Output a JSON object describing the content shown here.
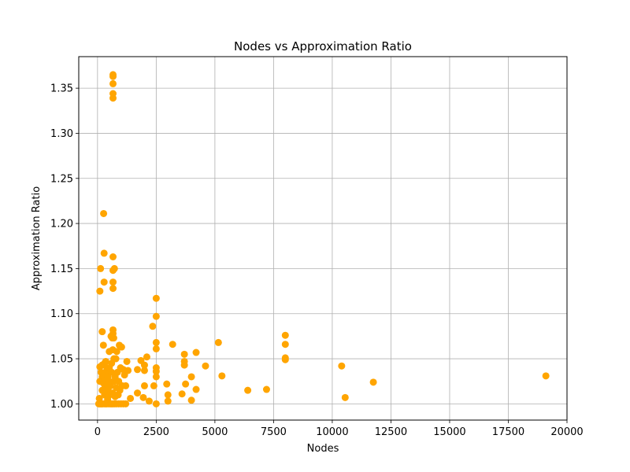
{
  "chart_data": {
    "type": "scatter",
    "title": "Nodes vs Approximation Ratio",
    "xlabel": "Nodes",
    "ylabel": "Approximation Ratio",
    "xlim": [
      -800,
      20000
    ],
    "ylim": [
      0.982,
      1.385
    ],
    "x_ticks": [
      0,
      2500,
      5000,
      7500,
      10000,
      12500,
      15000,
      17500,
      20000
    ],
    "x_tick_labels": [
      "0",
      "2500",
      "5000",
      "7500",
      "10000",
      "12500",
      "15000",
      "17500",
      "20000"
    ],
    "y_ticks": [
      1.0,
      1.05,
      1.1,
      1.15,
      1.2,
      1.25,
      1.3,
      1.35
    ],
    "y_tick_labels": [
      "1.00",
      "1.05",
      "1.10",
      "1.15",
      "1.20",
      "1.25",
      "1.30",
      "1.35"
    ],
    "grid": true,
    "marker_color": "#ffa500",
    "points": [
      {
        "x": 51,
        "y": 1.0
      },
      {
        "x": 76,
        "y": 1.006
      },
      {
        "x": 100,
        "y": 1.0
      },
      {
        "x": 100,
        "y": 1.025
      },
      {
        "x": 100,
        "y": 1.041
      },
      {
        "x": 100,
        "y": 1.125
      },
      {
        "x": 130,
        "y": 1.15
      },
      {
        "x": 150,
        "y": 1.0
      },
      {
        "x": 150,
        "y": 1.035
      },
      {
        "x": 180,
        "y": 1.0
      },
      {
        "x": 200,
        "y": 1.015
      },
      {
        "x": 200,
        "y": 1.03
      },
      {
        "x": 200,
        "y": 1.043
      },
      {
        "x": 200,
        "y": 1.08
      },
      {
        "x": 226,
        "y": 1.0
      },
      {
        "x": 250,
        "y": 1.023
      },
      {
        "x": 250,
        "y": 1.065
      },
      {
        "x": 260,
        "y": 1.211
      },
      {
        "x": 280,
        "y": 1.167
      },
      {
        "x": 280,
        "y": 1.135
      },
      {
        "x": 300,
        "y": 1.0
      },
      {
        "x": 300,
        "y": 1.01
      },
      {
        "x": 300,
        "y": 1.028
      },
      {
        "x": 300,
        "y": 1.045
      },
      {
        "x": 320,
        "y": 1.018
      },
      {
        "x": 350,
        "y": 1.0
      },
      {
        "x": 350,
        "y": 1.033
      },
      {
        "x": 350,
        "y": 1.047
      },
      {
        "x": 380,
        "y": 1.012
      },
      {
        "x": 400,
        "y": 1.0
      },
      {
        "x": 400,
        "y": 1.022
      },
      {
        "x": 400,
        "y": 1.038
      },
      {
        "x": 430,
        "y": 1.005
      },
      {
        "x": 450,
        "y": 1.03
      },
      {
        "x": 450,
        "y": 1.015
      },
      {
        "x": 480,
        "y": 1.0
      },
      {
        "x": 500,
        "y": 1.025
      },
      {
        "x": 500,
        "y": 1.04
      },
      {
        "x": 500,
        "y": 1.058
      },
      {
        "x": 520,
        "y": 1.01
      },
      {
        "x": 550,
        "y": 1.0
      },
      {
        "x": 550,
        "y": 1.02
      },
      {
        "x": 576,
        "y": 1.075
      },
      {
        "x": 600,
        "y": 1.0
      },
      {
        "x": 600,
        "y": 1.035
      },
      {
        "x": 600,
        "y": 1.045
      },
      {
        "x": 630,
        "y": 1.073
      },
      {
        "x": 650,
        "y": 1.0
      },
      {
        "x": 650,
        "y": 1.012
      },
      {
        "x": 650,
        "y": 1.06
      },
      {
        "x": 660,
        "y": 1.365
      },
      {
        "x": 660,
        "y": 1.363
      },
      {
        "x": 660,
        "y": 1.355
      },
      {
        "x": 660,
        "y": 1.344
      },
      {
        "x": 660,
        "y": 1.339
      },
      {
        "x": 660,
        "y": 1.163
      },
      {
        "x": 660,
        "y": 1.148
      },
      {
        "x": 660,
        "y": 1.135
      },
      {
        "x": 660,
        "y": 1.128
      },
      {
        "x": 660,
        "y": 1.082
      },
      {
        "x": 660,
        "y": 1.078
      },
      {
        "x": 690,
        "y": 1.073
      },
      {
        "x": 700,
        "y": 1.025
      },
      {
        "x": 700,
        "y": 1.05
      },
      {
        "x": 720,
        "y": 1.0
      },
      {
        "x": 720,
        "y": 1.15
      },
      {
        "x": 750,
        "y": 1.008
      },
      {
        "x": 750,
        "y": 1.03
      },
      {
        "x": 780,
        "y": 1.05
      },
      {
        "x": 800,
        "y": 1.0
      },
      {
        "x": 800,
        "y": 1.018
      },
      {
        "x": 820,
        "y": 1.058
      },
      {
        "x": 850,
        "y": 1.035
      },
      {
        "x": 880,
        "y": 1.01
      },
      {
        "x": 900,
        "y": 1.0
      },
      {
        "x": 900,
        "y": 1.025
      },
      {
        "x": 930,
        "y": 1.065
      },
      {
        "x": 950,
        "y": 1.015
      },
      {
        "x": 980,
        "y": 1.04
      },
      {
        "x": 1000,
        "y": 1.0
      },
      {
        "x": 1024,
        "y": 1.063
      },
      {
        "x": 1050,
        "y": 1.02
      },
      {
        "x": 1100,
        "y": 1.0
      },
      {
        "x": 1100,
        "y": 1.038
      },
      {
        "x": 1150,
        "y": 1.032
      },
      {
        "x": 1200,
        "y": 1.0
      },
      {
        "x": 1200,
        "y": 1.02
      },
      {
        "x": 1250,
        "y": 1.047
      },
      {
        "x": 1300,
        "y": 1.037
      },
      {
        "x": 1400,
        "y": 1.006
      },
      {
        "x": 1700,
        "y": 1.012
      },
      {
        "x": 1700,
        "y": 1.038
      },
      {
        "x": 1850,
        "y": 1.048
      },
      {
        "x": 1950,
        "y": 1.007
      },
      {
        "x": 2000,
        "y": 1.043
      },
      {
        "x": 2000,
        "y": 1.02
      },
      {
        "x": 2000,
        "y": 1.037
      },
      {
        "x": 2100,
        "y": 1.052
      },
      {
        "x": 2200,
        "y": 1.003
      },
      {
        "x": 2350,
        "y": 1.086
      },
      {
        "x": 2400,
        "y": 1.02
      },
      {
        "x": 2500,
        "y": 1.117
      },
      {
        "x": 2500,
        "y": 1.097
      },
      {
        "x": 2500,
        "y": 1.068
      },
      {
        "x": 2500,
        "y": 1.061
      },
      {
        "x": 2500,
        "y": 1.04
      },
      {
        "x": 2500,
        "y": 1.036
      },
      {
        "x": 2500,
        "y": 1.03
      },
      {
        "x": 2500,
        "y": 1.0
      },
      {
        "x": 2950,
        "y": 1.022
      },
      {
        "x": 3000,
        "y": 1.01
      },
      {
        "x": 3000,
        "y": 1.003
      },
      {
        "x": 3200,
        "y": 1.066
      },
      {
        "x": 3600,
        "y": 1.011
      },
      {
        "x": 3700,
        "y": 1.055
      },
      {
        "x": 3700,
        "y": 1.047
      },
      {
        "x": 3700,
        "y": 1.043
      },
      {
        "x": 3750,
        "y": 1.022
      },
      {
        "x": 4000,
        "y": 1.03
      },
      {
        "x": 4000,
        "y": 1.004
      },
      {
        "x": 4200,
        "y": 1.057
      },
      {
        "x": 4200,
        "y": 1.016
      },
      {
        "x": 4600,
        "y": 1.042
      },
      {
        "x": 5150,
        "y": 1.068
      },
      {
        "x": 5300,
        "y": 1.031
      },
      {
        "x": 6400,
        "y": 1.015
      },
      {
        "x": 7200,
        "y": 1.016
      },
      {
        "x": 8000,
        "y": 1.076
      },
      {
        "x": 8000,
        "y": 1.066
      },
      {
        "x": 8000,
        "y": 1.051
      },
      {
        "x": 8000,
        "y": 1.049
      },
      {
        "x": 10400,
        "y": 1.042
      },
      {
        "x": 10550,
        "y": 1.007
      },
      {
        "x": 11750,
        "y": 1.024
      },
      {
        "x": 19100,
        "y": 1.031
      }
    ]
  }
}
